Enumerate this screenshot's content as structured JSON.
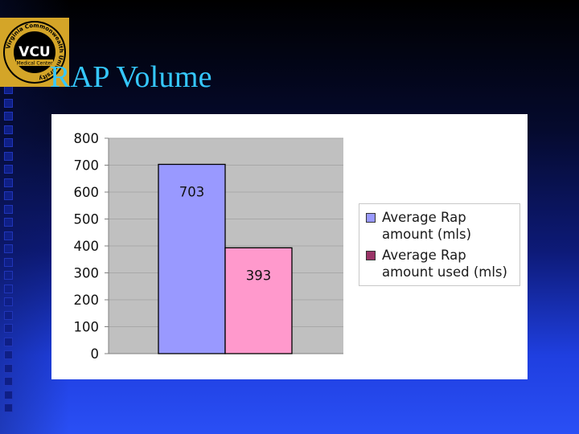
{
  "slide": {
    "title": "RAP Volume",
    "logo": {
      "icon": "vcu-medical-center-seal",
      "main_text": "VCU",
      "sub_text": "Medical Center",
      "ring_text": "Virginia Commonwealth University"
    }
  },
  "chart_data": {
    "type": "bar",
    "title": "",
    "xlabel": "",
    "ylabel": "",
    "ylim": [
      0,
      800
    ],
    "yticks": [
      0,
      100,
      200,
      300,
      400,
      500,
      600,
      700,
      800
    ],
    "grid": true,
    "legend_position": "right",
    "series": [
      {
        "name": "Average Rap amount (mls)",
        "value": 703,
        "color": "#9999ff",
        "legend_color": "#9999ff"
      },
      {
        "name": "Average Rap amount used (mls)",
        "value": 393,
        "color": "#ff99cc",
        "legend_color": "#993366"
      }
    ],
    "plot_background": "#c0c0c0",
    "data_labels": [
      "703",
      "393"
    ]
  }
}
